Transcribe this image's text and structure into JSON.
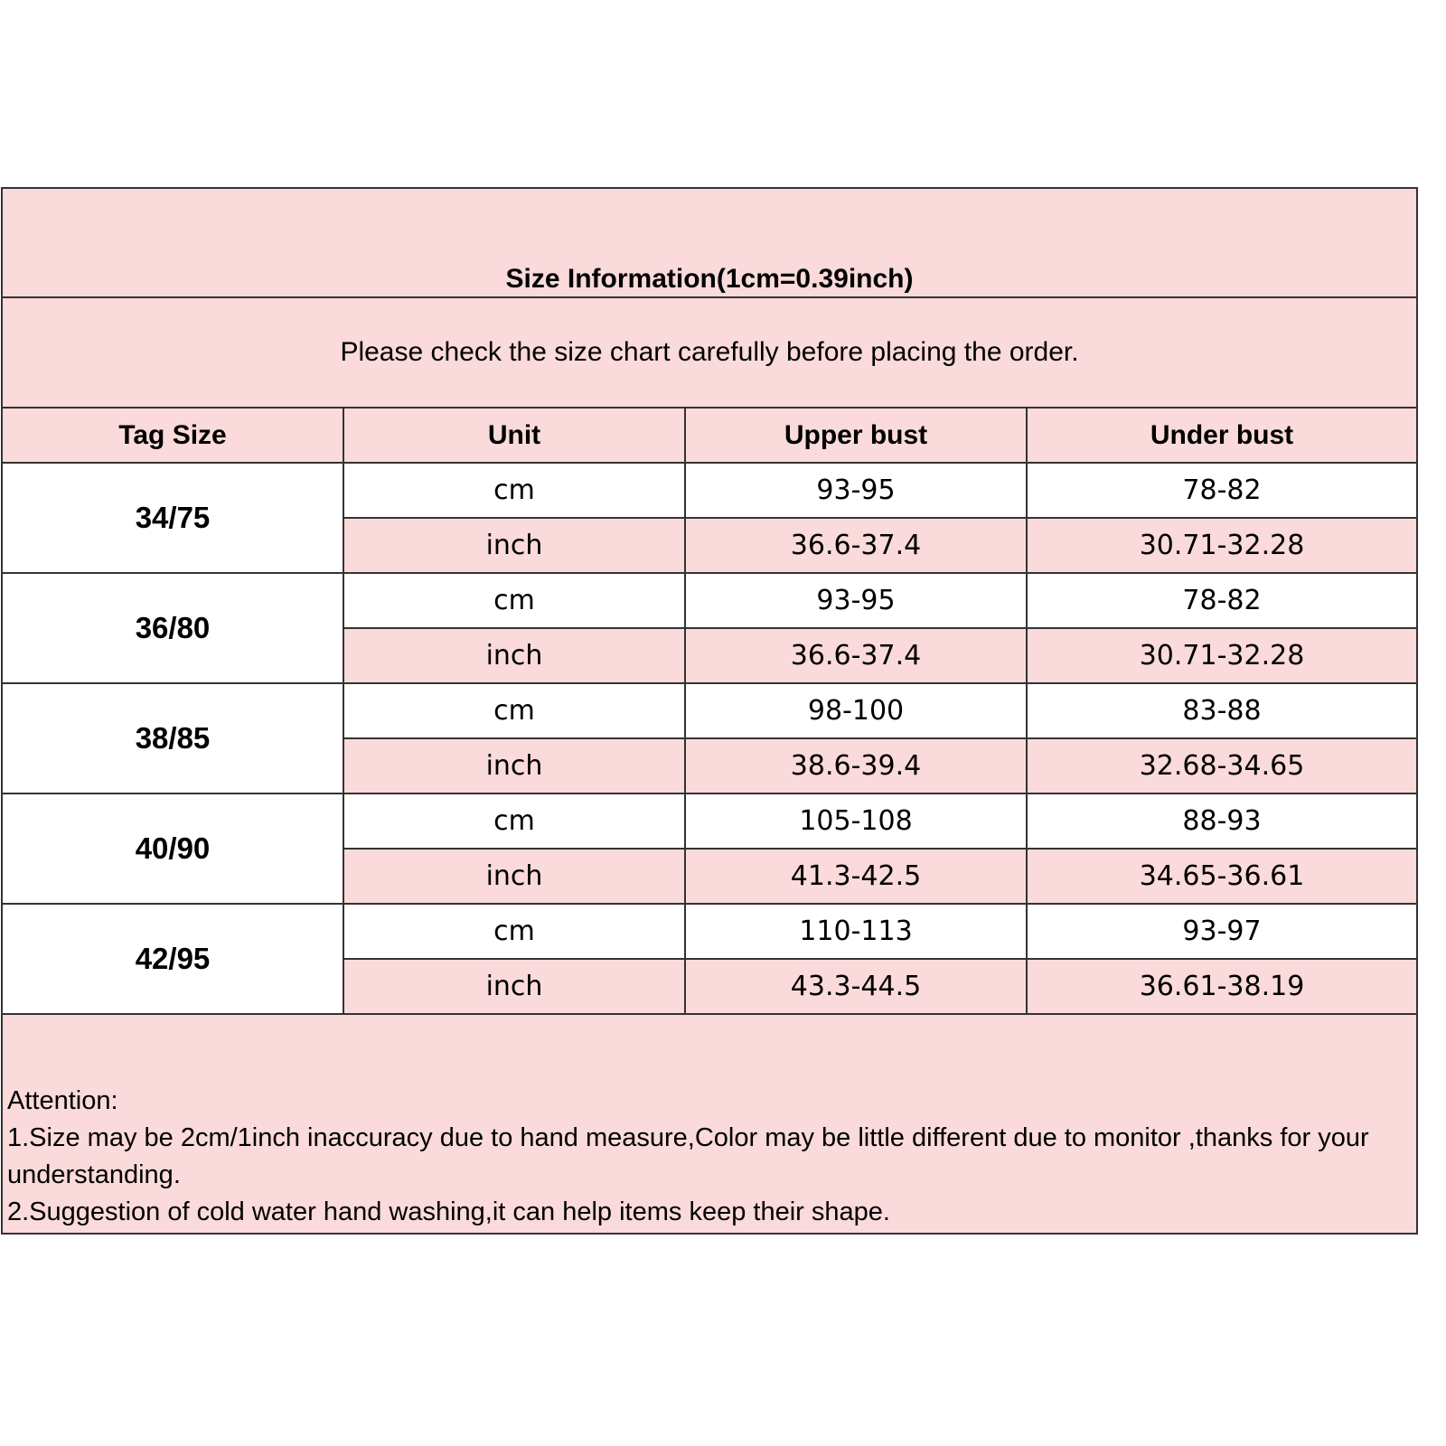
{
  "title": "Size Information(1cm=0.39inch)",
  "subtitle": "Please check the size chart carefully before placing the order.",
  "headers": [
    "Tag Size",
    "Unit",
    "Upper bust",
    "Under bust"
  ],
  "rows": [
    {
      "tag": "34/75",
      "cm": {
        "unit": "cm",
        "upper": "93-95",
        "under": "78-82"
      },
      "inch": {
        "unit": "inch",
        "upper": "36.6-37.4",
        "under": "30.71-32.28"
      }
    },
    {
      "tag": "36/80",
      "cm": {
        "unit": "cm",
        "upper": "93-95",
        "under": "78-82"
      },
      "inch": {
        "unit": "inch",
        "upper": "36.6-37.4",
        "under": "30.71-32.28"
      }
    },
    {
      "tag": "38/85",
      "cm": {
        "unit": "cm",
        "upper": "98-100",
        "under": "83-88"
      },
      "inch": {
        "unit": "inch",
        "upper": "38.6-39.4",
        "under": "32.68-34.65"
      }
    },
    {
      "tag": "40/90",
      "cm": {
        "unit": "cm",
        "upper": "105-108",
        "under": "88-93"
      },
      "inch": {
        "unit": "inch",
        "upper": "41.3-42.5",
        "under": "34.65-36.61"
      }
    },
    {
      "tag": "42/95",
      "cm": {
        "unit": "cm",
        "upper": "110-113",
        "under": "93-97"
      },
      "inch": {
        "unit": "inch",
        "upper": "43.3-44.5",
        "under": "36.61-38.19"
      }
    }
  ],
  "attention": {
    "heading": "Attention:",
    "notes": [
      "1.Size may be 2cm/1inch inaccuracy due to hand measure,Color may be little different due to monitor ,thanks for your understanding.",
      "2.Suggestion of cold water hand washing,it can help items keep their shape."
    ]
  },
  "colors": {
    "pink": "#fadada",
    "border": "#333333"
  }
}
